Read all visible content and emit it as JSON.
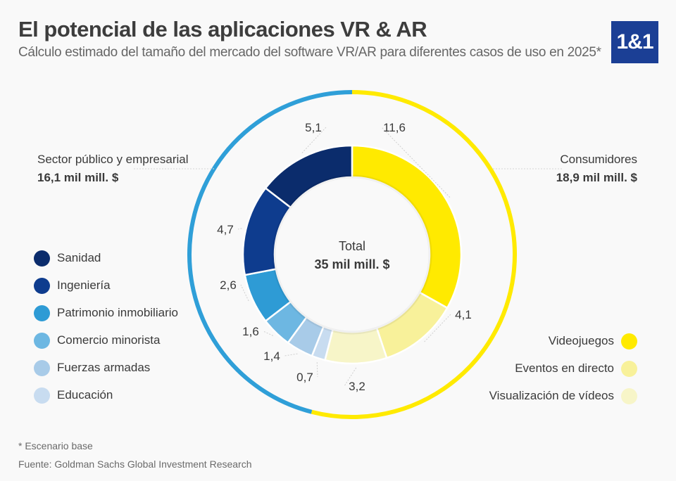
{
  "header": {
    "title": "El potencial de las aplicaciones VR & AR",
    "subtitle": "Cálculo estimado del tamaño del mercado del software VR/AR para diferentes casos de uso en 2025*",
    "logo_text": "1&1",
    "logo_color": "#1b3f95"
  },
  "chart_data": {
    "type": "pie",
    "style": "donut",
    "center_label": "Total",
    "center_value": "35 mil mill. $",
    "total": 35,
    "groups": [
      {
        "name": "Sector público y empresarial",
        "value_label": "16,1 mil mill. $",
        "value": 16.1,
        "color": "#2f9fd8"
      },
      {
        "name": "Consumidores",
        "value_label": "18,9 mil mill. $",
        "value": 18.9,
        "color": "#ffea00"
      }
    ],
    "slices": [
      {
        "name": "Videojuegos",
        "group": "Consumidores",
        "value": 11.6,
        "label": "11,6",
        "color": "#ffea00"
      },
      {
        "name": "Eventos en directo",
        "group": "Consumidores",
        "value": 4.1,
        "label": "4,1",
        "color": "#f8f19a"
      },
      {
        "name": "Visualización de vídeos",
        "group": "Consumidores",
        "value": 3.2,
        "label": "3,2",
        "color": "#f7f5c8"
      },
      {
        "name": "Educación",
        "group": "Sector público y empresarial",
        "value": 0.7,
        "label": "0,7",
        "color": "#c8dcf0"
      },
      {
        "name": "Fuerzas armadas",
        "group": "Sector público y empresarial",
        "value": 1.4,
        "label": "1,4",
        "color": "#a8cbe8"
      },
      {
        "name": "Comercio minorista",
        "group": "Sector público y empresarial",
        "value": 1.6,
        "label": "1,6",
        "color": "#6db7e2"
      },
      {
        "name": "Patrimonio inmobiliario",
        "group": "Sector público y empresarial",
        "value": 2.6,
        "label": "2,6",
        "color": "#2e9bd5"
      },
      {
        "name": "Ingeniería",
        "group": "Sector público y empresarial",
        "value": 4.7,
        "label": "4,7",
        "color": "#0e3c8e"
      },
      {
        "name": "Sanidad",
        "group": "Sector público y empresarial",
        "value": 5.1,
        "label": "5,1",
        "color": "#0b2c6c"
      }
    ],
    "legend_left": [
      "Sanidad",
      "Ingeniería",
      "Patrimonio inmobiliario",
      "Comercio minorista",
      "Fuerzas armadas",
      "Educación"
    ],
    "legend_right": [
      "Videojuegos",
      "Eventos en directo",
      "Visualización de vídeos"
    ]
  },
  "footer": {
    "note": "* Escenario base",
    "source": "Fuente: Goldman Sachs Global Investment Research"
  }
}
